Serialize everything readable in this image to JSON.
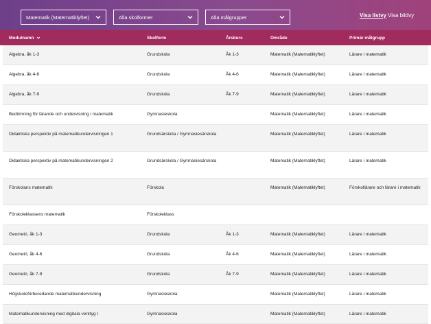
{
  "filters": {
    "subject": "Matematik (Matematiklyftet)",
    "school_forms": "Alla skolformer",
    "target_groups": "Alla målgrupper"
  },
  "view_toggle": {
    "list": "Visa listvy",
    "grid": "Visa bildvy"
  },
  "columns": {
    "module": "Modulnamn",
    "school_form": "Skolform",
    "grade": "Årskurs",
    "area": "Område",
    "target": "Primär målgrupp"
  },
  "rows": [
    {
      "module": "Algebra, åk 1-3",
      "school_form": "Grundskola",
      "grade": "Åk 1-3",
      "area": "Matematik (Matematiklyftet)",
      "target": "Lärare i matematik"
    },
    {
      "module": "Algebra, åk 4-6",
      "school_form": "Grundskola",
      "grade": "Åk 4-6",
      "area": "Matematik (Matematiklyftet)",
      "target": "Lärare i matematik"
    },
    {
      "module": "Algebra, åk 7-9",
      "school_form": "Grundskola",
      "grade": "Åk 7-9",
      "area": "Matematik (Matematiklyftet)",
      "target": "Lärare i matematik"
    },
    {
      "module": "Bedömning för lärande och undervisning i matematik",
      "school_form": "Gymnasieskola",
      "grade": "",
      "area": "Matematik (Matematiklyftet)",
      "target": "Lärare i matematik"
    },
    {
      "module": "Didaktiska perspektiv på matematikundervisningen 1",
      "school_form": "Grundsärskola / Gymnasiesärskola",
      "grade": "",
      "area": "Matematik (Matematiklyftet)",
      "target": "Lärare i matematik"
    },
    {
      "module": "Didaktiska perspektiv på matematikundervisningen 2",
      "school_form": "Grundsärskola / Gymnasiesärskola",
      "grade": "",
      "area": "Matematik (Matematiklyftet)",
      "target": "Lärare i matematik"
    },
    {
      "module": "Förskolans matematik",
      "school_form": "Förskola",
      "grade": "",
      "area": "Matematik (Matematiklyftet)",
      "target": "Förskollärare och lärare i matematik"
    },
    {
      "module": "Förskoleklassens matematik",
      "school_form": "Förskoleklass",
      "grade": "",
      "area": "",
      "target": ""
    },
    {
      "module": "Geometri, åk 1-3",
      "school_form": "Grundskola",
      "grade": "Åk 1-3",
      "area": "Matematik (Matematiklyftet)",
      "target": "Lärare i matematik"
    },
    {
      "module": "Geometri, åk 4-6",
      "school_form": "Grundskola",
      "grade": "Åk 4-6",
      "area": "Matematik (Matematiklyftet)",
      "target": "Lärare i matematik"
    },
    {
      "module": "Geometri, åk 7-9",
      "school_form": "Grundskola",
      "grade": "Åk 7-9",
      "area": "Matematik (Matematiklyftet)",
      "target": "Lärare i matematik"
    },
    {
      "module": "Högskoleförberedande matematikundervisning",
      "school_form": "Gymnasieskola",
      "grade": "",
      "area": "Matematik (Matematiklyftet)",
      "target": "Lärare i matematik"
    },
    {
      "module": "Matematikundervisning med digitala verktyg I",
      "school_form": "Gymnasieskola",
      "grade": "",
      "area": "Matematik (Matematiklyftet)",
      "target": "Lärare i matematik"
    }
  ],
  "colors": {
    "header_bar": "#a12b5c",
    "filter_bar": "#7a4a8e"
  },
  "icons": {
    "dropdown": "chevron-down-icon",
    "sort": "sort-chevron-icon"
  }
}
